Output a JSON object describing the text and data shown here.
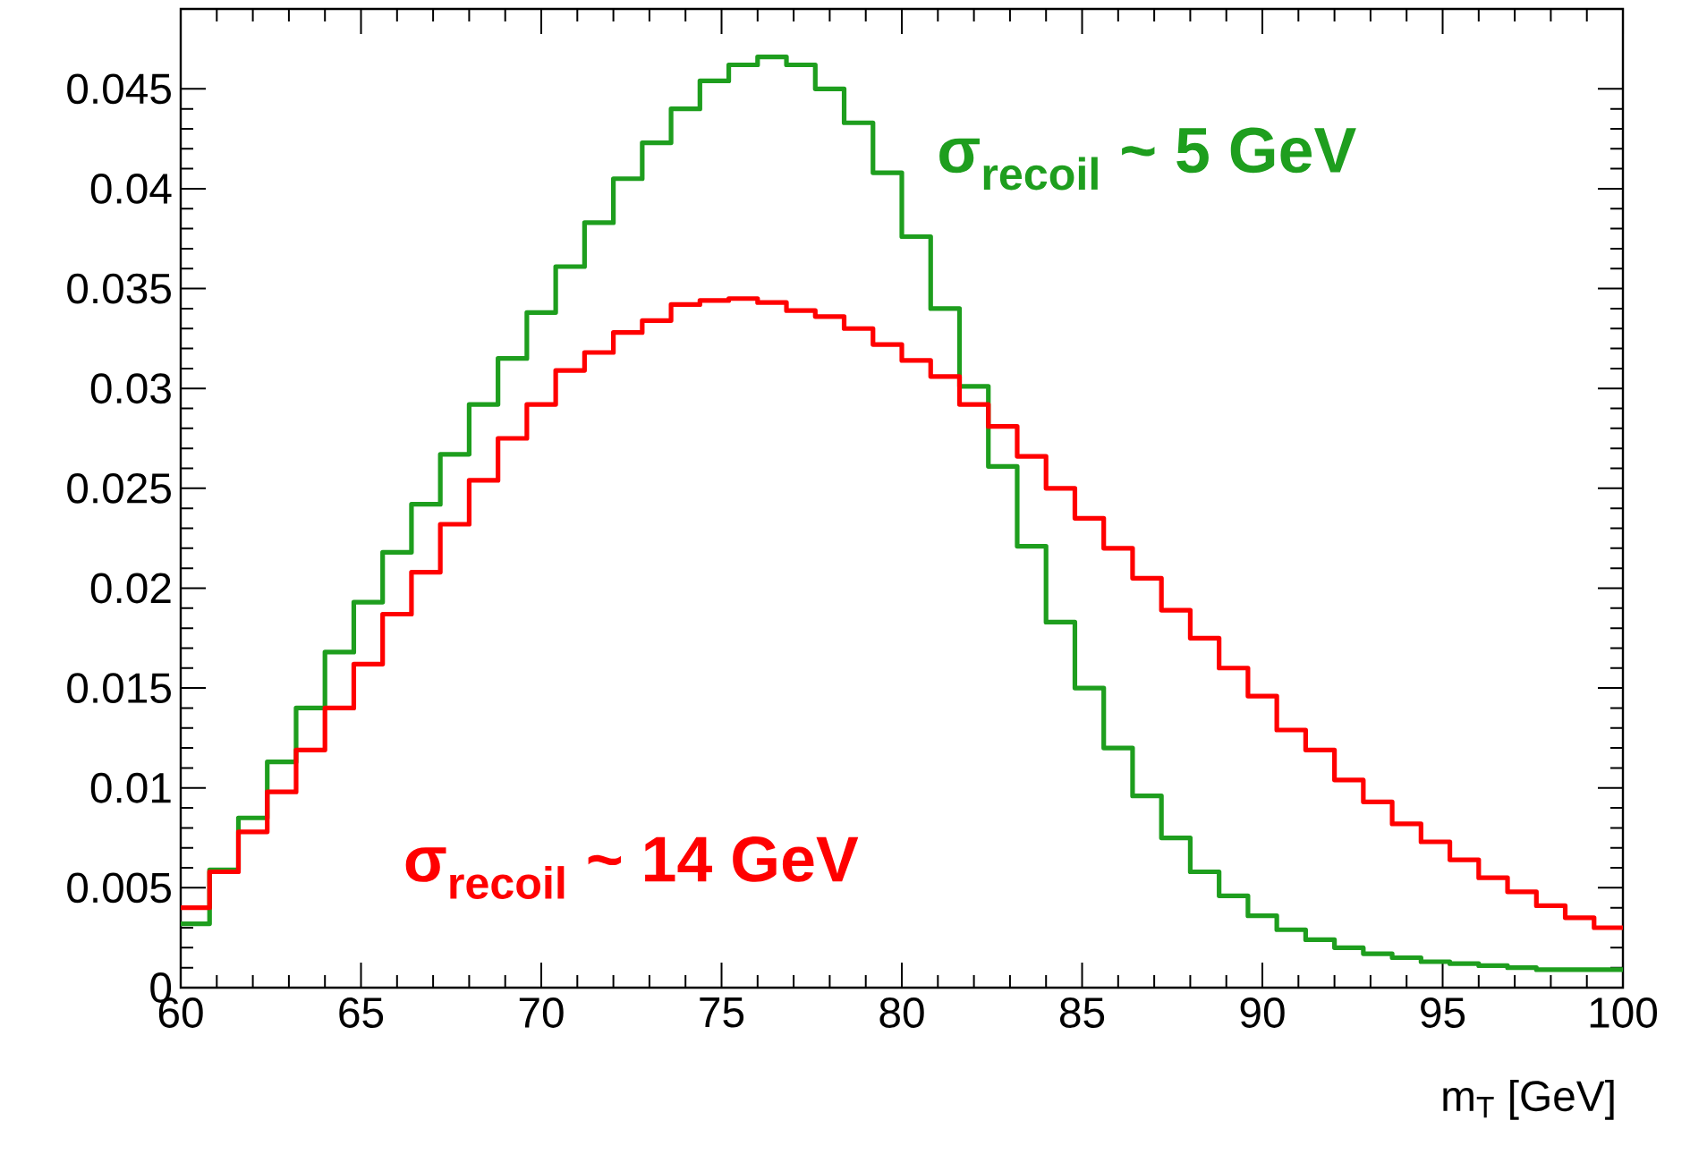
{
  "chart_data": {
    "type": "histogram",
    "xlabel": "m$_{T}$ [GeV]",
    "bins": [
      60,
      60.8,
      61.6,
      62.4,
      63.2,
      64,
      64.8,
      65.6,
      66.4,
      67.2,
      68,
      68.8,
      69.6,
      70.4,
      71.2,
      72,
      72.8,
      73.6,
      74.4,
      75.2,
      76,
      76.8,
      77.6,
      78.4,
      79.2,
      80,
      80.8,
      81.6,
      82.4,
      83.2,
      84,
      84.8,
      85.6,
      86.4,
      87.2,
      88,
      88.8,
      89.6,
      90.4,
      91.2,
      92,
      92.8,
      93.6,
      94.4,
      95.2,
      96,
      96.8,
      97.6,
      98.4,
      99.2,
      100
    ],
    "series": [
      {
        "name": "σ$_{recoil}$ ~ 5 GeV",
        "color": "#1e9e1e",
        "values": [
          0.0032,
          0.0059,
          0.0085,
          0.0113,
          0.014,
          0.0168,
          0.0193,
          0.0218,
          0.0242,
          0.0267,
          0.0292,
          0.0315,
          0.0338,
          0.0361,
          0.0383,
          0.0405,
          0.0423,
          0.044,
          0.0454,
          0.0462,
          0.0466,
          0.0462,
          0.045,
          0.0433,
          0.0408,
          0.0376,
          0.034,
          0.0301,
          0.0261,
          0.0221,
          0.0183,
          0.015,
          0.012,
          0.0096,
          0.0075,
          0.0058,
          0.0046,
          0.0036,
          0.0029,
          0.0024,
          0.002,
          0.0017,
          0.0015,
          0.0013,
          0.0012,
          0.0011,
          0.001,
          0.0009,
          0.0009,
          0.0009
        ]
      },
      {
        "name": "σ$_{recoil}$ ~ 14 GeV",
        "color": "#ff0000",
        "values": [
          0.004,
          0.0058,
          0.0078,
          0.0098,
          0.0119,
          0.014,
          0.0162,
          0.0187,
          0.0208,
          0.0232,
          0.0254,
          0.0275,
          0.0292,
          0.0309,
          0.0318,
          0.0328,
          0.0334,
          0.0342,
          0.0344,
          0.0345,
          0.0343,
          0.0339,
          0.0336,
          0.033,
          0.0322,
          0.0314,
          0.0306,
          0.0292,
          0.0281,
          0.0266,
          0.025,
          0.0235,
          0.022,
          0.0205,
          0.0189,
          0.0175,
          0.016,
          0.0146,
          0.0129,
          0.0119,
          0.0104,
          0.0093,
          0.0082,
          0.0073,
          0.0064,
          0.0055,
          0.0048,
          0.0041,
          0.0035,
          0.003
        ]
      }
    ],
    "xlim": [
      60,
      100
    ],
    "ylim": [
      0,
      0.049
    ],
    "xticks": [
      60,
      65,
      70,
      75,
      80,
      85,
      90,
      95,
      100
    ],
    "yticks": [
      0,
      0.005,
      0.01,
      0.015,
      0.02,
      0.025,
      0.03,
      0.035,
      0.04,
      0.045
    ],
    "legend": false,
    "grid": false
  }
}
